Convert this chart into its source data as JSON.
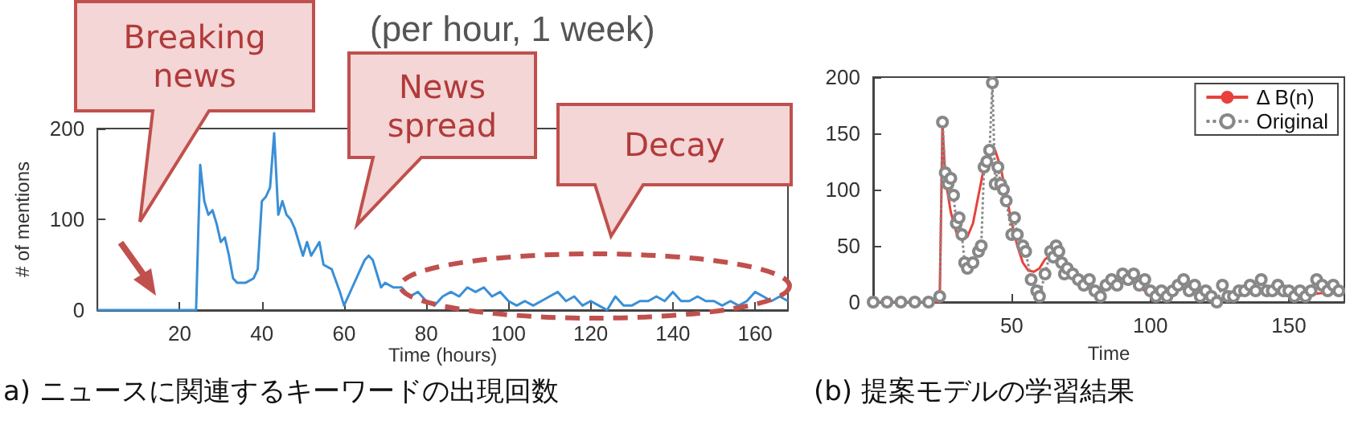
{
  "chart_data": [
    {
      "type": "line",
      "title": "(per hour, 1 week)",
      "xlabel": "Time (hours)",
      "ylabel": "# of mentions",
      "xlim": [
        0,
        168
      ],
      "xticks": [
        20,
        40,
        60,
        80,
        100,
        120,
        140,
        160
      ],
      "ylim": [
        0,
        200
      ],
      "yticks": [
        0,
        100,
        200
      ],
      "grid": false,
      "legend": false,
      "marker": "none",
      "line_style": "solid",
      "series": [
        {
          "color": "#3a8fd6",
          "x": [
            0,
            5,
            10,
            15,
            20,
            24,
            25,
            26,
            27,
            28,
            29,
            30,
            31,
            32,
            33,
            34,
            36,
            38,
            39,
            40,
            41,
            42,
            43,
            44,
            45,
            46,
            47,
            48,
            50,
            51,
            52,
            54,
            55,
            57,
            59,
            60,
            62,
            64,
            65,
            66,
            67,
            68,
            69,
            70,
            72,
            74,
            76,
            78,
            80,
            82,
            84,
            86,
            88,
            90,
            92,
            94,
            96,
            98,
            100,
            102,
            104,
            106,
            108,
            110,
            112,
            114,
            116,
            118,
            120,
            122,
            124,
            126,
            128,
            130,
            132,
            134,
            136,
            138,
            140,
            142,
            144,
            146,
            148,
            150,
            152,
            154,
            156,
            158,
            160,
            162,
            164,
            166,
            168
          ],
          "values": [
            0,
            0,
            0,
            0,
            0,
            0,
            160,
            120,
            105,
            110,
            95,
            75,
            80,
            60,
            35,
            30,
            30,
            35,
            45,
            120,
            125,
            135,
            195,
            105,
            120,
            105,
            100,
            90,
            60,
            75,
            60,
            75,
            50,
            45,
            20,
            5,
            25,
            45,
            55,
            60,
            55,
            40,
            25,
            30,
            25,
            25,
            15,
            20,
            10,
            5,
            15,
            20,
            15,
            25,
            20,
            25,
            15,
            20,
            10,
            5,
            10,
            5,
            10,
            15,
            20,
            10,
            15,
            5,
            10,
            5,
            0,
            15,
            5,
            5,
            10,
            10,
            15,
            10,
            20,
            10,
            10,
            15,
            10,
            10,
            5,
            10,
            5,
            10,
            20,
            15,
            10,
            15,
            10
          ]
        }
      ],
      "annotations": [
        "Breaking news",
        "News spread",
        "Decay",
        "a) ニュースに関連するキーワードの出現回数"
      ]
    },
    {
      "type": "line",
      "xlabel": "Time",
      "xlim": [
        0,
        170
      ],
      "xticks": [
        50,
        100,
        150
      ],
      "ylim": [
        0,
        200
      ],
      "yticks": [
        0,
        50,
        100,
        150,
        200
      ],
      "grid": false,
      "legend": "top right",
      "series": [
        {
          "name": "Δ B(n)",
          "color": "#e8413c",
          "marker": "none",
          "line_style": "solid",
          "x": [
            0,
            10,
            20,
            24,
            25,
            26,
            28,
            30,
            32,
            34,
            36,
            38,
            40,
            42,
            44,
            46,
            48,
            50,
            52,
            54,
            56,
            58,
            60,
            62,
            64,
            66,
            68,
            70,
            74,
            78,
            82,
            86,
            90,
            94,
            98,
            102,
            106,
            110,
            114,
            118,
            122,
            126,
            130,
            134,
            138,
            142,
            146,
            150,
            154,
            158,
            162,
            166,
            170
          ],
          "values": [
            0,
            0,
            0,
            0,
            158,
            110,
            80,
            62,
            55,
            58,
            70,
            95,
            120,
            133,
            135,
            120,
            95,
            70,
            50,
            35,
            28,
            27,
            30,
            38,
            42,
            42,
            38,
            30,
            20,
            12,
            10,
            15,
            22,
            18,
            10,
            5,
            6,
            10,
            15,
            10,
            5,
            3,
            5,
            8,
            10,
            10,
            8,
            5,
            5,
            7,
            8,
            8,
            8
          ]
        },
        {
          "name": "Original",
          "color": "#888888",
          "marker": "circle",
          "line_style": "dotted",
          "x": [
            0,
            5,
            10,
            15,
            20,
            24,
            25,
            26,
            27,
            28,
            29,
            30,
            31,
            32,
            33,
            34,
            36,
            38,
            39,
            40,
            41,
            42,
            43,
            44,
            45,
            46,
            47,
            48,
            50,
            51,
            52,
            54,
            55,
            57,
            59,
            60,
            62,
            64,
            65,
            66,
            67,
            68,
            69,
            70,
            72,
            74,
            76,
            78,
            80,
            82,
            84,
            86,
            88,
            90,
            92,
            94,
            96,
            98,
            100,
            102,
            104,
            106,
            108,
            110,
            112,
            114,
            116,
            118,
            120,
            122,
            124,
            126,
            128,
            130,
            132,
            134,
            136,
            138,
            140,
            142,
            144,
            146,
            148,
            150,
            152,
            154,
            156,
            158,
            160,
            162,
            164,
            166,
            168
          ],
          "values": [
            0,
            0,
            0,
            0,
            0,
            5,
            160,
            115,
            105,
            110,
            95,
            70,
            75,
            60,
            35,
            30,
            35,
            45,
            50,
            120,
            125,
            135,
            195,
            105,
            120,
            105,
            100,
            90,
            60,
            75,
            60,
            50,
            45,
            20,
            10,
            5,
            25,
            45,
            40,
            50,
            45,
            35,
            25,
            30,
            25,
            20,
            15,
            20,
            10,
            5,
            15,
            20,
            15,
            25,
            20,
            25,
            15,
            20,
            10,
            5,
            10,
            5,
            10,
            15,
            20,
            10,
            15,
            5,
            10,
            5,
            0,
            15,
            5,
            5,
            10,
            10,
            15,
            10,
            20,
            10,
            10,
            15,
            10,
            10,
            5,
            10,
            5,
            10,
            20,
            15,
            10,
            15,
            10
          ]
        }
      ],
      "annotations": [
        "(b) 提案モデルの学習結果"
      ]
    }
  ]
}
